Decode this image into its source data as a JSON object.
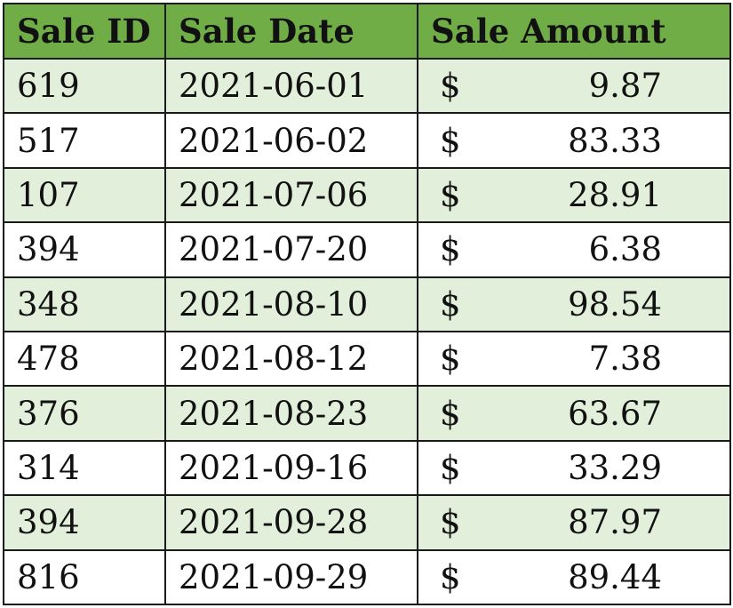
{
  "table": {
    "headers": [
      "Sale ID",
      "Sale Date",
      "Sale Amount"
    ],
    "rows": [
      {
        "id": "619",
        "date": "2021-06-01",
        "currency": "$",
        "amount": "9.87"
      },
      {
        "id": "517",
        "date": "2021-06-02",
        "currency": "$",
        "amount": "83.33"
      },
      {
        "id": "107",
        "date": "2021-07-06",
        "currency": "$",
        "amount": "28.91"
      },
      {
        "id": "394",
        "date": "2021-07-20",
        "currency": "$",
        "amount": "6.38"
      },
      {
        "id": "348",
        "date": "2021-08-10",
        "currency": "$",
        "amount": "98.54"
      },
      {
        "id": "478",
        "date": "2021-08-12",
        "currency": "$",
        "amount": "7.38"
      },
      {
        "id": "376",
        "date": "2021-08-23",
        "currency": "$",
        "amount": "63.67"
      },
      {
        "id": "314",
        "date": "2021-09-16",
        "currency": "$",
        "amount": "33.29"
      },
      {
        "id": "394",
        "date": "2021-09-28",
        "currency": "$",
        "amount": "87.97"
      },
      {
        "id": "816",
        "date": "2021-09-29",
        "currency": "$",
        "amount": "89.44"
      }
    ],
    "colors": {
      "header_bg": "#70ad47",
      "band_bg": "#e2efda",
      "plain_bg": "#ffffff",
      "border": "#1a1a1a"
    }
  }
}
